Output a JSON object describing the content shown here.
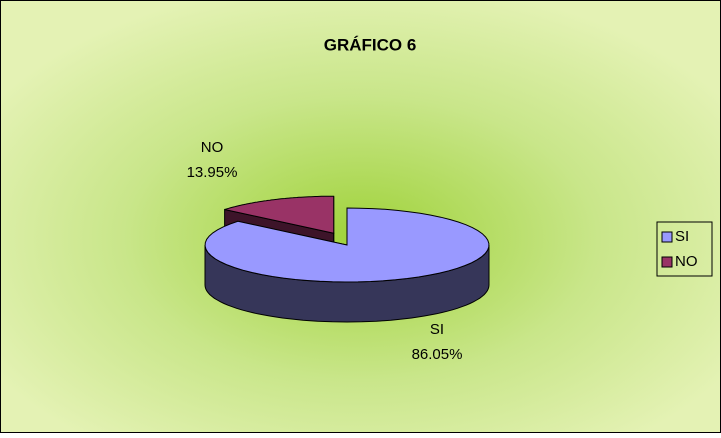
{
  "chart_data": {
    "type": "pie",
    "title": "GRÁFICO 6",
    "categories": [
      "SI",
      "NO"
    ],
    "values": [
      86.05,
      13.95
    ],
    "value_labels": [
      "86.05%",
      "13.95%"
    ],
    "colors": [
      "#9999ff",
      "#993366"
    ],
    "exploded": [
      false,
      true
    ],
    "legend": "right"
  }
}
